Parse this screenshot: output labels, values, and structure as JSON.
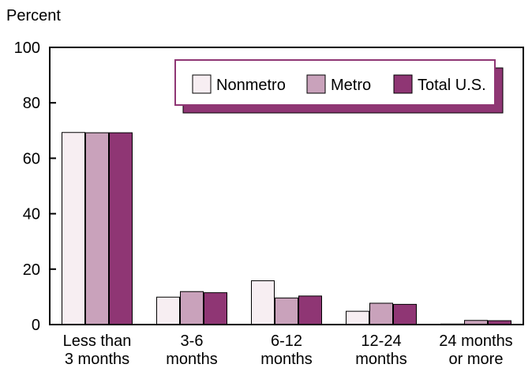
{
  "chart_data": {
    "type": "bar",
    "title": "",
    "ylabel": "Percent",
    "xlabel": "",
    "ylim": [
      0,
      100
    ],
    "yticks": [
      0,
      20,
      40,
      60,
      80,
      100
    ],
    "grid": false,
    "legend_position": "top-right",
    "categories": [
      [
        "Less than",
        "3 months"
      ],
      [
        "3-6",
        "months"
      ],
      [
        "6-12",
        "months"
      ],
      [
        "12-24",
        "months"
      ],
      [
        "24 months",
        "or more"
      ]
    ],
    "series": [
      {
        "name": "Nonmetro",
        "color": "#f7eef2",
        "values": [
          69.3,
          9.9,
          15.8,
          4.8,
          0.2
        ]
      },
      {
        "name": "Metro",
        "color": "#c9a2bb",
        "values": [
          69.2,
          11.9,
          9.6,
          7.7,
          1.5
        ]
      },
      {
        "name": "Total U.S.",
        "color": "#8f3674",
        "values": [
          69.2,
          11.5,
          10.3,
          7.3,
          1.4
        ]
      }
    ],
    "legend_shadow_color": "#8f3674"
  }
}
